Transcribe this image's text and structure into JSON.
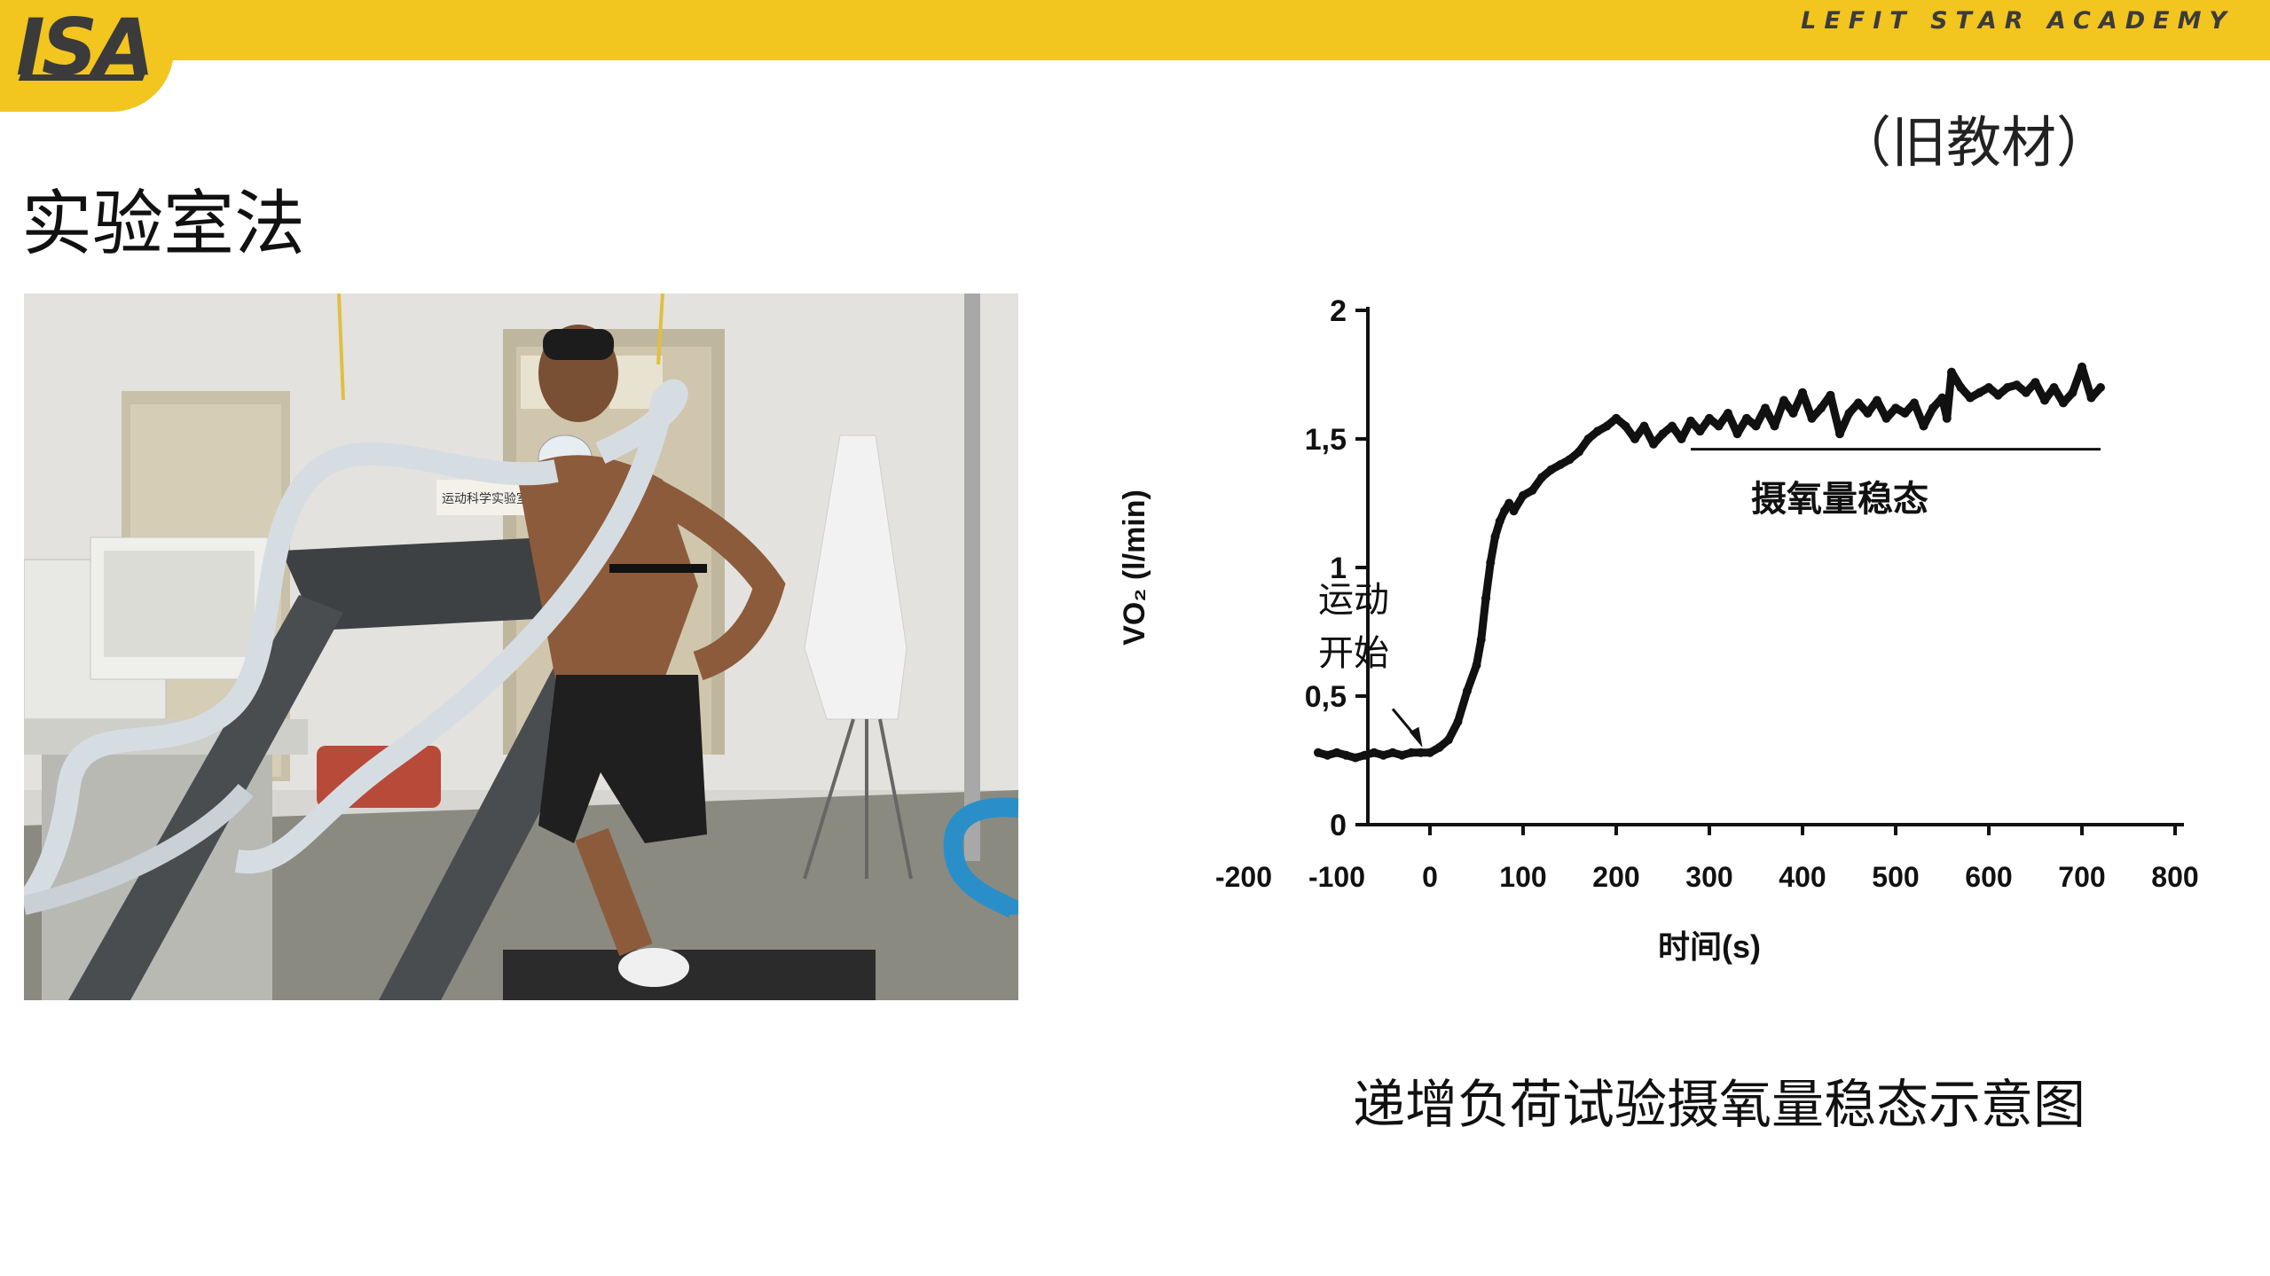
{
  "header": {
    "logo": "ISA",
    "brand": "LEFIT STAR ACADEMY",
    "colors": {
      "bar": "#f2c51f",
      "logo": "#3b3b3b"
    }
  },
  "edition_note": "（旧教材）",
  "title": "实验室法",
  "photo": {
    "description_icon": "treadmill-test-photo",
    "wall_sign": "运动科学实验室"
  },
  "caption": "递增负荷试验摄氧量稳态示意图",
  "chart_data": {
    "type": "line",
    "title": "",
    "xlabel": "时间(s)",
    "ylabel": "VO₂ (l/min)",
    "xlim": [
      -200,
      800
    ],
    "ylim": [
      0,
      2
    ],
    "x_ticks": [
      "-200",
      "-100",
      "0",
      "100",
      "200",
      "300",
      "400",
      "500",
      "600",
      "700",
      "800"
    ],
    "y_ticks": [
      "0",
      "0,5",
      "1",
      "1,5",
      "2"
    ],
    "annotations": {
      "start": [
        "运动",
        "开始"
      ],
      "steady": "摄氧量稳态"
    },
    "steady_state_level": 1.46,
    "series": [
      {
        "x": [
          -120,
          -110,
          -100,
          -90,
          -80,
          -70,
          -60,
          -50,
          -40,
          -30,
          -20,
          -10,
          0,
          10,
          20,
          30,
          40,
          50,
          55,
          60,
          65,
          70,
          75,
          80,
          85,
          90,
          100,
          110,
          120,
          130,
          140,
          150,
          160,
          170,
          180,
          190,
          200,
          210,
          220,
          230,
          240,
          250,
          260,
          270,
          280,
          290,
          300,
          310,
          320,
          330,
          340,
          350,
          360,
          370,
          380,
          390,
          400,
          410,
          420,
          430,
          440,
          450,
          460,
          470,
          480,
          490,
          500,
          510,
          520,
          530,
          540,
          550,
          555,
          560,
          570,
          580,
          590,
          600,
          610,
          620,
          630,
          640,
          650,
          660,
          670,
          680,
          690,
          700,
          710,
          720
        ],
        "y": [
          0.28,
          0.27,
          0.28,
          0.27,
          0.26,
          0.27,
          0.28,
          0.27,
          0.28,
          0.27,
          0.28,
          0.28,
          0.28,
          0.3,
          0.33,
          0.4,
          0.52,
          0.62,
          0.72,
          0.88,
          1.02,
          1.12,
          1.18,
          1.22,
          1.25,
          1.22,
          1.28,
          1.3,
          1.35,
          1.38,
          1.4,
          1.42,
          1.45,
          1.5,
          1.53,
          1.55,
          1.58,
          1.55,
          1.5,
          1.55,
          1.48,
          1.52,
          1.55,
          1.5,
          1.57,
          1.53,
          1.58,
          1.55,
          1.6,
          1.52,
          1.58,
          1.55,
          1.62,
          1.55,
          1.65,
          1.6,
          1.68,
          1.58,
          1.62,
          1.67,
          1.52,
          1.6,
          1.64,
          1.6,
          1.65,
          1.58,
          1.62,
          1.6,
          1.64,
          1.55,
          1.62,
          1.66,
          1.58,
          1.76,
          1.7,
          1.66,
          1.68,
          1.7,
          1.67,
          1.7,
          1.71,
          1.68,
          1.72,
          1.65,
          1.7,
          1.64,
          1.68,
          1.78,
          1.66,
          1.7
        ]
      }
    ]
  }
}
